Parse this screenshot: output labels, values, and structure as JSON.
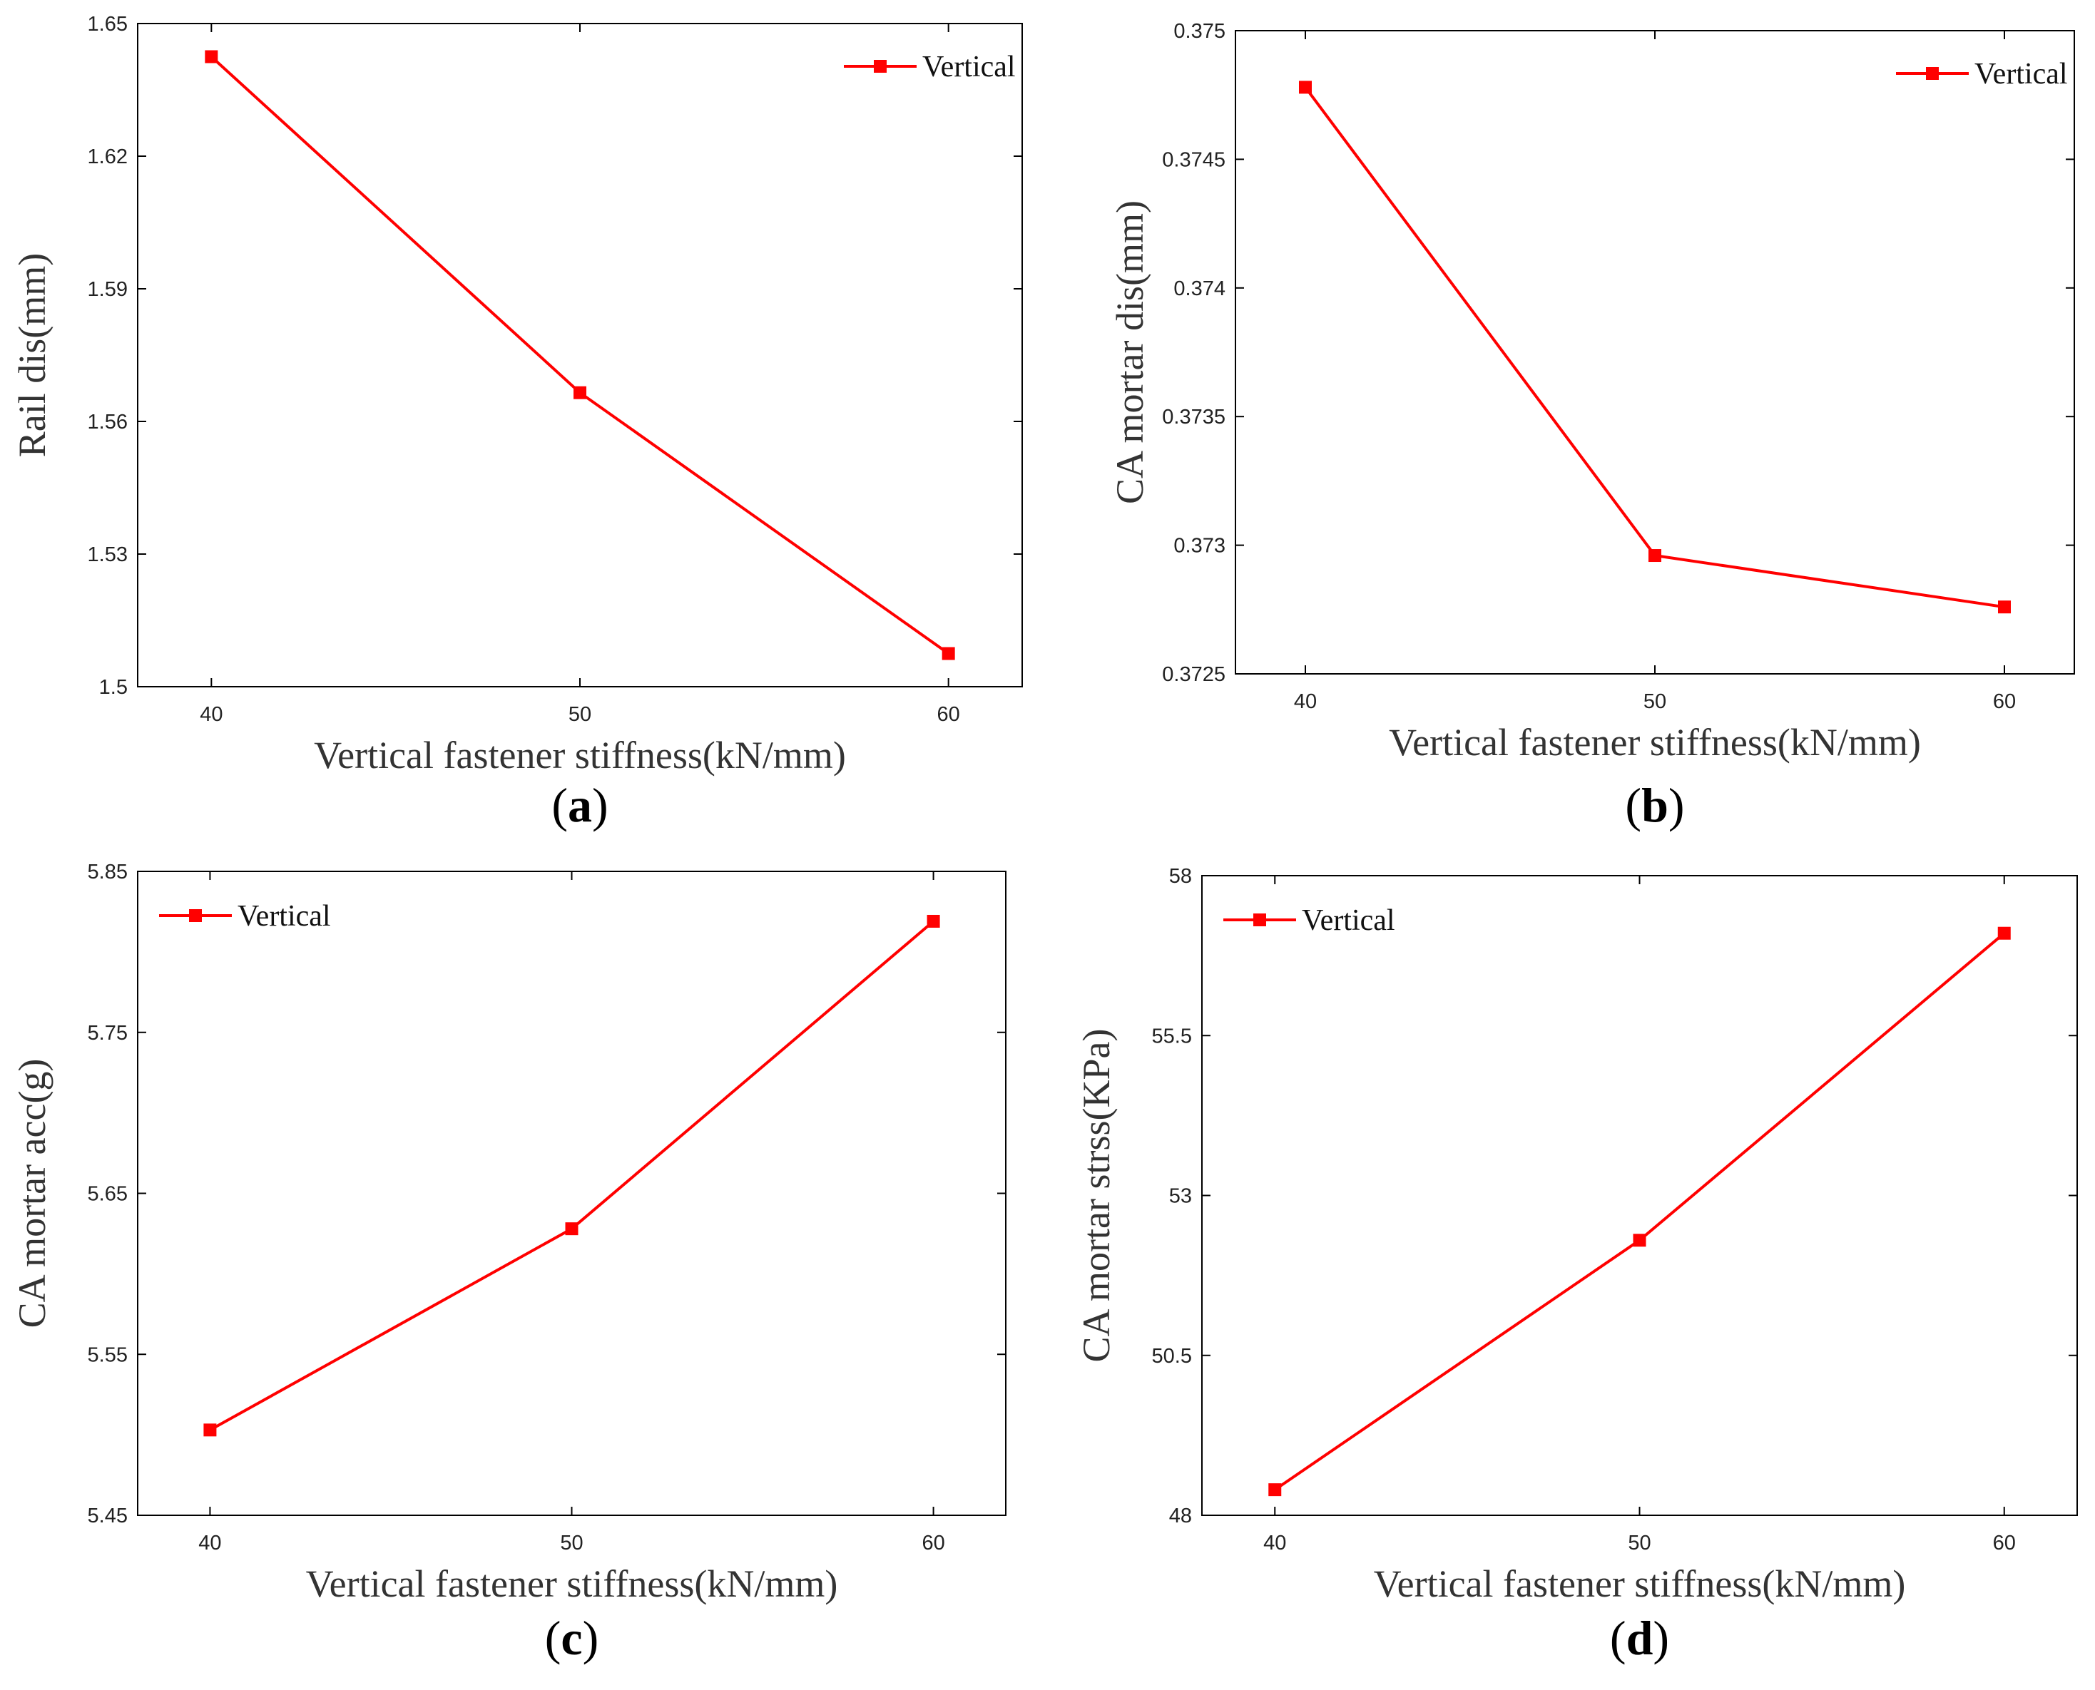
{
  "series_color": "#ff0000",
  "chart_data": [
    {
      "type": "line",
      "caption_letter": "a",
      "x": [
        40,
        50,
        60
      ],
      "series": [
        {
          "name": "Vertical",
          "values": [
            1.6425,
            1.5665,
            1.5075
          ]
        }
      ],
      "xlabel": "Vertical fastener stiffness(kN/mm)",
      "ylabel": "Rail dis(mm)",
      "xlim": [
        38,
        62
      ],
      "ylim": [
        1.5,
        1.65
      ],
      "xticks": [
        40,
        50,
        60
      ],
      "yticks": [
        1.5,
        1.53,
        1.56,
        1.59,
        1.62,
        1.65
      ],
      "ytick_labels": [
        "1.5",
        "1.53",
        "1.56",
        "1.59",
        "1.62",
        "1.65"
      ],
      "legend_position": "top-right",
      "grid": false
    },
    {
      "type": "line",
      "caption_letter": "b",
      "x": [
        40,
        50,
        60
      ],
      "series": [
        {
          "name": "Vertical",
          "values": [
            0.37478,
            0.37296,
            0.37276
          ]
        }
      ],
      "xlabel": "Vertical fastener stiffness(kN/mm)",
      "ylabel": "CA mortar dis(mm)",
      "xlim": [
        38,
        62
      ],
      "ylim": [
        0.3725,
        0.375
      ],
      "xticks": [
        40,
        50,
        60
      ],
      "yticks": [
        0.3725,
        0.373,
        0.3735,
        0.374,
        0.3745,
        0.375
      ],
      "ytick_labels": [
        "0.3725",
        "0.373",
        "0.3735",
        "0.374",
        "0.3745",
        "0.375"
      ],
      "legend_position": "top-right",
      "grid": false
    },
    {
      "type": "line",
      "caption_letter": "c",
      "x": [
        40,
        50,
        60
      ],
      "series": [
        {
          "name": "Vertical",
          "values": [
            5.503,
            5.628,
            5.819
          ]
        }
      ],
      "xlabel": "Vertical fastener stiffness(kN/mm)",
      "ylabel": "CA mortar acc(g)",
      "xlim": [
        38,
        62
      ],
      "ylim": [
        5.45,
        5.85
      ],
      "xticks": [
        40,
        50,
        60
      ],
      "yticks": [
        5.45,
        5.55,
        5.65,
        5.75,
        5.85
      ],
      "ytick_labels": [
        "5.45",
        "5.55",
        "5.65",
        "5.75",
        "5.85"
      ],
      "legend_position": "top-left",
      "grid": false
    },
    {
      "type": "line",
      "caption_letter": "d",
      "x": [
        40,
        50,
        60
      ],
      "series": [
        {
          "name": "Vertical",
          "values": [
            48.4,
            52.3,
            57.1
          ]
        }
      ],
      "xlabel": "Vertical fastener stiffness(kN/mm)",
      "ylabel": "CA mortar strss(KPa)",
      "xlim": [
        38,
        62
      ],
      "ylim": [
        48,
        58
      ],
      "xticks": [
        40,
        50,
        60
      ],
      "yticks": [
        48,
        50.5,
        53,
        55.5,
        58
      ],
      "ytick_labels": [
        "48",
        "50.5",
        "53",
        "55.5",
        "58"
      ],
      "legend_position": "top-left",
      "grid": false
    }
  ]
}
